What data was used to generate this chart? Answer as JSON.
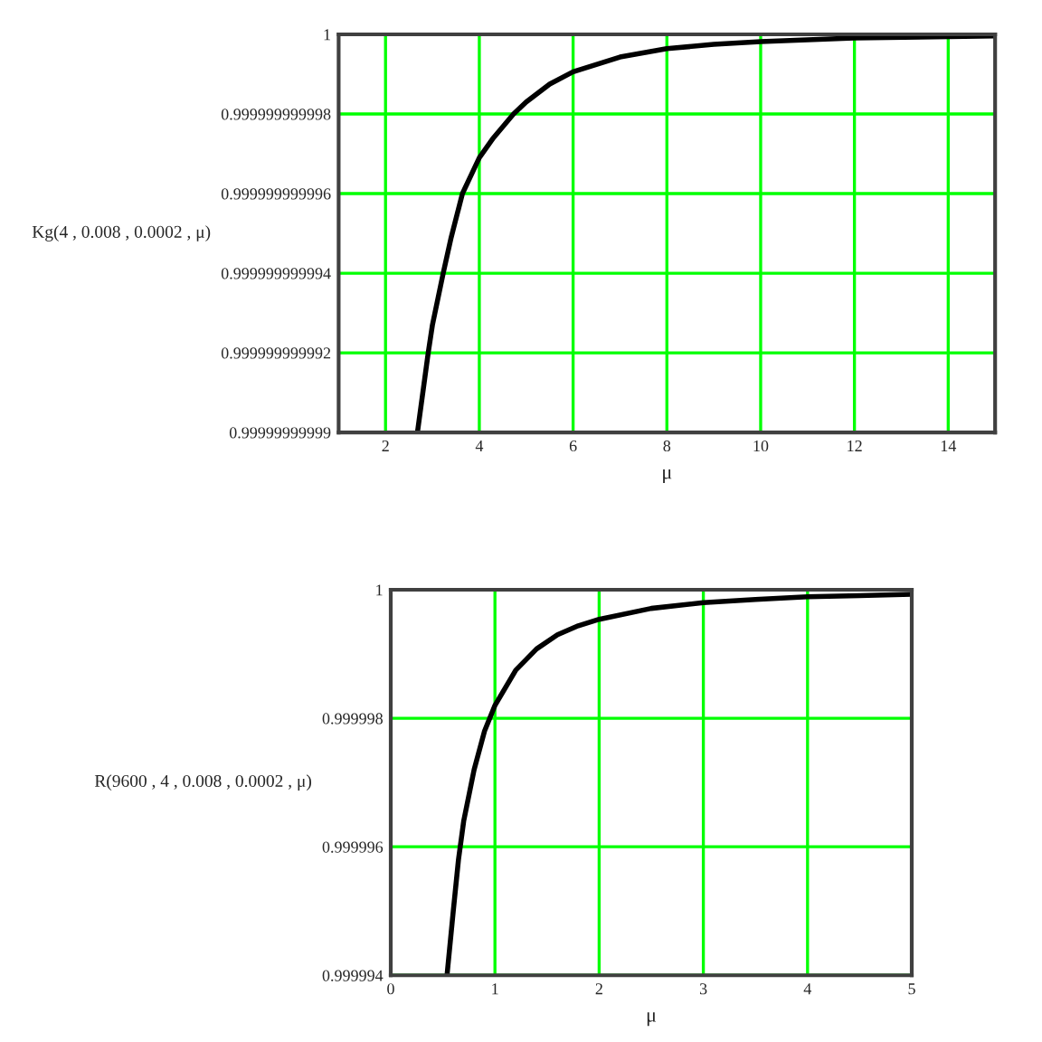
{
  "chart_data": [
    {
      "type": "line",
      "xlabel": "μ",
      "ylabel": "Kg(4 , 0.008 , 0.0002 , μ)",
      "x": [
        2.68,
        2.91,
        3.0,
        3.23,
        3.4,
        3.64,
        4,
        4.3,
        4.73,
        5,
        5.5,
        6,
        7,
        8,
        9,
        10,
        12,
        15
      ],
      "series": [
        {
          "color": "#000000",
          "values": [
            0.99999999999,
            0.999999999992,
            0.9999999999927,
            0.999999999994,
            0.9999999999949,
            0.999999999996,
            0.9999999999969,
            0.9999999999974,
            0.999999999998,
            0.9999999999983,
            0.99999999999875,
            0.99999999999906,
            0.99999999999943,
            0.99999999999964,
            0.99999999999975,
            0.99999999999982,
            0.99999999999991,
            0.99999999999996
          ]
        }
      ],
      "xlim": [
        1,
        15
      ],
      "xticks": [
        2,
        4,
        6,
        8,
        10,
        12,
        14
      ],
      "ylim": [
        0.99999999999,
        1
      ],
      "yticks": [
        0.99999999999,
        0.999999999992,
        0.999999999994,
        0.999999999996,
        0.999999999998,
        1
      ],
      "grid": true,
      "legend": false,
      "marker": "none",
      "line_style": "solid"
    },
    {
      "type": "line",
      "xlabel": "μ",
      "ylabel": "R(9600 , 4 , 0.008 , 0.0002 , μ)",
      "x": [
        0.54,
        0.6,
        0.65,
        0.7,
        0.8,
        0.9,
        1,
        1.2,
        1.4,
        1.6,
        1.8,
        2,
        2.5,
        3,
        3.5,
        4,
        4.5,
        5
      ],
      "series": [
        {
          "color": "#000000",
          "values": [
            0.999994,
            0.999995,
            0.9999958,
            0.9999964,
            0.9999972,
            0.9999978,
            0.9999982,
            0.99999875,
            0.99999908,
            0.9999993,
            0.99999944,
            0.99999954,
            0.99999971,
            0.9999998,
            0.99999985,
            0.99999989,
            0.99999991,
            0.99999993
          ]
        }
      ],
      "xlim": [
        0,
        5
      ],
      "xticks": [
        0,
        1,
        2,
        3,
        4,
        5
      ],
      "ylim": [
        0.999994,
        1
      ],
      "yticks": [
        0.999994,
        0.999996,
        0.999998,
        1
      ],
      "grid": true,
      "legend": false,
      "marker": "none",
      "line_style": "solid"
    }
  ]
}
